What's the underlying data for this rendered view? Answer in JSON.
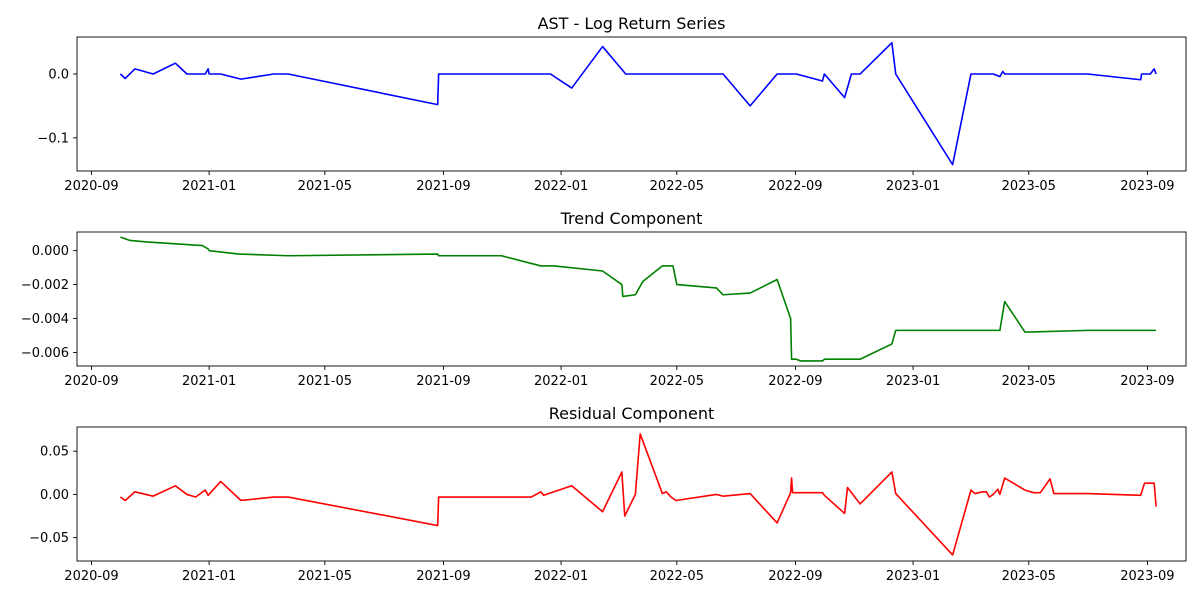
{
  "chart_data": [
    {
      "type": "line",
      "title": "AST - Log Return Series",
      "xlabel": "",
      "ylabel": "",
      "xlim": [
        "2020-08-17",
        "2023-10-11"
      ],
      "ylim": [
        -0.152,
        0.058
      ],
      "yticks": [
        0.0,
        -0.1
      ],
      "ytick_labels": [
        "0.0",
        "−0.1"
      ],
      "xtick_labels": [
        "2020-09",
        "2021-01",
        "2021-05",
        "2021-09",
        "2022-01",
        "2022-05",
        "2022-09",
        "2023-01",
        "2023-05",
        "2023-09"
      ],
      "xticks": [
        "2020-09-01",
        "2021-01-01",
        "2021-05-01",
        "2021-09-01",
        "2022-01-01",
        "2022-05-01",
        "2022-09-01",
        "2023-01-01",
        "2023-05-01",
        "2023-09-01"
      ],
      "grid": false,
      "color": "#0000ff",
      "series": [
        {
          "x": [
            "2020-10-01",
            "2020-10-06",
            "2020-10-16",
            "2020-11-04",
            "2020-11-27",
            "2020-12-09",
            "2020-12-28",
            "2020-12-31",
            "2021-01-01",
            "2021-01-13",
            "2021-02-03",
            "2021-03-09",
            "2021-03-24",
            "2021-08-26",
            "2021-08-27",
            "2021-12-21",
            "2022-01-12",
            "2022-02-13",
            "2022-03-09",
            "2022-06-18",
            "2022-07-16",
            "2022-08-13",
            "2022-09-02",
            "2022-09-29",
            "2022-10-01",
            "2022-10-22",
            "2022-10-29",
            "2022-11-07",
            "2022-12-10",
            "2022-12-14",
            "2023-02-11",
            "2023-03-02",
            "2023-03-03",
            "2023-03-14",
            "2023-03-25",
            "2023-04-01",
            "2023-04-04",
            "2023-04-06",
            "2023-07-01",
            "2023-08-25",
            "2023-08-26",
            "2023-09-04",
            "2023-09-08",
            "2023-09-10"
          ],
          "y": [
            0.0,
            -0.007,
            0.008,
            0.0,
            0.017,
            0.0,
            0.0,
            0.008,
            0.0,
            0.0,
            -0.008,
            0.0,
            0.0,
            -0.048,
            0.0,
            0.0,
            -0.022,
            0.043,
            0.0,
            0.0,
            -0.05,
            0.0,
            0.0,
            -0.011,
            0.0,
            -0.037,
            0.0,
            0.0,
            0.049,
            0.0,
            -0.142,
            0.0,
            0.0,
            0.0,
            0.0,
            -0.004,
            0.004,
            0.0,
            0.0,
            -0.009,
            0.0,
            0.0,
            0.008,
            0.0
          ]
        }
      ]
    },
    {
      "type": "line",
      "title": "Trend Component",
      "xlabel": "",
      "ylabel": "",
      "xlim": [
        "2020-08-17",
        "2023-10-11"
      ],
      "ylim": [
        -0.0068,
        0.0011
      ],
      "yticks": [
        0.0,
        -0.002,
        -0.004,
        -0.006
      ],
      "ytick_labels": [
        "0.000",
        "−0.002",
        "−0.004",
        "−0.006"
      ],
      "xtick_labels": [
        "2020-09",
        "2021-01",
        "2021-05",
        "2021-09",
        "2022-01",
        "2022-05",
        "2022-09",
        "2023-01",
        "2023-05",
        "2023-09"
      ],
      "xticks": [
        "2020-09-01",
        "2021-01-01",
        "2021-05-01",
        "2021-09-01",
        "2022-01-01",
        "2022-05-01",
        "2022-09-01",
        "2023-01-01",
        "2023-05-01",
        "2023-09-01"
      ],
      "grid": false,
      "color": "#008000",
      "series": [
        {
          "x": [
            "2020-10-01",
            "2020-10-11",
            "2020-10-31",
            "2020-11-01",
            "2020-12-25",
            "2020-12-31",
            "2021-01-01",
            "2021-02-01",
            "2021-03-24",
            "2021-08-26",
            "2021-08-27",
            "2021-10-31",
            "2021-12-11",
            "2021-12-25",
            "2022-02-13",
            "2022-03-05",
            "2022-03-06",
            "2022-03-19",
            "2022-03-27",
            "2022-04-16",
            "2022-04-27",
            "2022-05-01",
            "2022-06-11",
            "2022-06-18",
            "2022-07-16",
            "2022-08-13",
            "2022-08-27",
            "2022-08-28",
            "2022-09-02",
            "2022-09-06",
            "2022-09-29",
            "2022-10-01",
            "2022-11-07",
            "2022-12-10",
            "2022-12-14",
            "2023-04-01",
            "2023-04-03",
            "2023-04-06",
            "2023-04-27",
            "2023-05-01",
            "2023-07-01",
            "2023-08-25",
            "2023-09-10"
          ],
          "y": [
            0.0008,
            0.0006,
            0.0005,
            0.0005,
            0.0003,
            0.0001,
            0.0,
            -0.0002,
            -0.0003,
            -0.0002,
            -0.0003,
            -0.0003,
            -0.0009,
            -0.0009,
            -0.0012,
            -0.002,
            -0.0027,
            -0.0026,
            -0.0018,
            -0.0009,
            -0.0009,
            -0.002,
            -0.0022,
            -0.0026,
            -0.0025,
            -0.0017,
            -0.004,
            -0.0064,
            -0.0064,
            -0.0065,
            -0.0065,
            -0.0064,
            -0.0064,
            -0.0055,
            -0.0047,
            -0.0047,
            -0.004,
            -0.003,
            -0.0048,
            -0.0048,
            -0.0047,
            -0.0047,
            -0.0047
          ]
        }
      ]
    },
    {
      "type": "line",
      "title": "Residual Component",
      "xlabel": "",
      "ylabel": "",
      "xlim": [
        "2020-08-17",
        "2023-10-11"
      ],
      "ylim": [
        -0.077,
        0.078
      ],
      "yticks": [
        0.05,
        0.0,
        -0.05
      ],
      "ytick_labels": [
        "0.05",
        "0.00",
        "−0.05"
      ],
      "xtick_labels": [
        "2020-09",
        "2021-01",
        "2021-05",
        "2021-09",
        "2022-01",
        "2022-05",
        "2022-09",
        "2023-01",
        "2023-05",
        "2023-09"
      ],
      "xticks": [
        "2020-09-01",
        "2021-01-01",
        "2021-05-01",
        "2021-09-01",
        "2022-01-01",
        "2022-05-01",
        "2022-09-01",
        "2023-01-01",
        "2023-05-01",
        "2023-09-01"
      ],
      "grid": false,
      "color": "#ff0000",
      "series": [
        {
          "x": [
            "2020-10-01",
            "2020-10-06",
            "2020-10-16",
            "2020-11-04",
            "2020-11-27",
            "2020-12-09",
            "2020-12-18",
            "2020-12-28",
            "2020-12-31",
            "2021-01-13",
            "2021-02-03",
            "2021-03-09",
            "2021-03-24",
            "2021-08-26",
            "2021-08-27",
            "2021-11-30",
            "2021-12-01",
            "2021-12-11",
            "2021-12-14",
            "2022-01-12",
            "2022-02-13",
            "2022-03-05",
            "2022-03-08",
            "2022-03-19",
            "2022-03-24",
            "2022-04-16",
            "2022-04-20",
            "2022-04-25",
            "2022-04-30",
            "2022-06-11",
            "2022-06-18",
            "2022-07-16",
            "2022-08-13",
            "2022-08-27",
            "2022-08-28",
            "2022-08-29",
            "2022-09-29",
            "2022-10-01",
            "2022-10-22",
            "2022-10-25",
            "2022-11-07",
            "2022-12-10",
            "2022-12-14",
            "2023-02-11",
            "2023-03-02",
            "2023-03-06",
            "2023-03-14",
            "2023-03-18",
            "2023-03-21",
            "2023-03-25",
            "2023-03-30",
            "2023-04-01",
            "2023-04-06",
            "2023-04-27",
            "2023-05-06",
            "2023-05-13",
            "2023-05-23",
            "2023-05-27",
            "2023-06-03",
            "2023-07-01",
            "2023-08-25",
            "2023-08-29",
            "2023-09-08",
            "2023-09-10"
          ],
          "y": [
            -0.003,
            -0.007,
            0.003,
            -0.002,
            0.01,
            0.0,
            -0.003,
            0.005,
            -0.001,
            0.015,
            -0.007,
            -0.003,
            -0.003,
            -0.036,
            -0.003,
            -0.003,
            -0.003,
            0.003,
            -0.001,
            0.01,
            -0.02,
            0.026,
            -0.025,
            0.0,
            0.07,
            0.001,
            0.003,
            -0.003,
            -0.007,
            0.0,
            -0.002,
            0.001,
            -0.033,
            0.002,
            0.019,
            0.002,
            0.002,
            -0.001,
            -0.022,
            0.008,
            -0.011,
            0.026,
            0.001,
            -0.07,
            0.005,
            0.001,
            0.003,
            0.003,
            -0.003,
            0.0,
            0.006,
            0.0,
            0.019,
            0.005,
            0.002,
            0.002,
            0.018,
            0.001,
            0.001,
            0.001,
            -0.001,
            0.013,
            0.013,
            -0.014
          ]
        }
      ]
    }
  ]
}
